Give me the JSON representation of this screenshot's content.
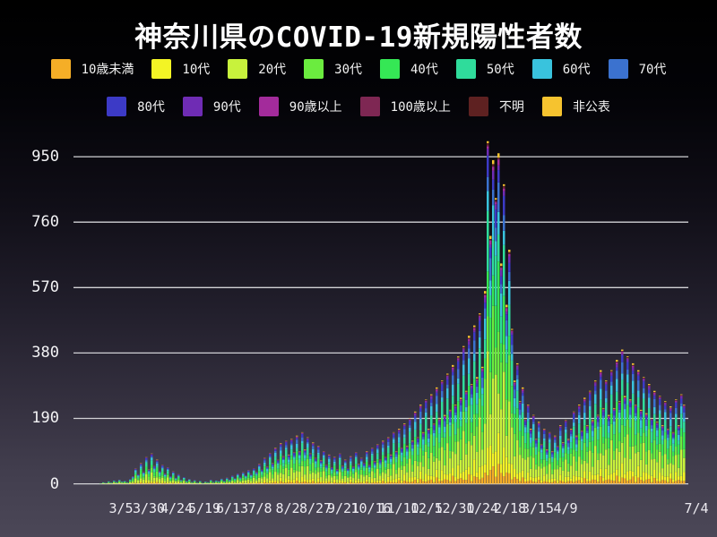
{
  "title": "神奈川県のCOVID-19新規陽性者数",
  "colors": {
    "background_top": "#000000",
    "background_bottom": "#4b4757",
    "gridline": "#d2d2d6",
    "title_text": "#ffffff",
    "axis_text": "#eceaf0"
  },
  "chart_data": {
    "type": "stacked_bar",
    "title": "神奈川県のCOVID-19新規陽性者数",
    "legend_position": "top",
    "grid": true,
    "y_axis": {
      "ticks": [
        0,
        190,
        380,
        570,
        760,
        950
      ],
      "max_visible": 1000
    },
    "x_axis": {
      "tick_labels": [
        "3/5",
        "3/30",
        "4/24",
        "5/19",
        "6/13",
        "7/8",
        "8/2",
        "8/27",
        "9/21",
        "10/16",
        "11/10",
        "12/5",
        "12/30",
        "1/24",
        "2/18",
        "3/15",
        "4/9",
        "7/4"
      ],
      "start_label": "3/5",
      "end_label": "7/4"
    },
    "age_groups": [
      {
        "label": "10歳未満",
        "color": "#f5ae27",
        "share": 0.045
      },
      {
        "label": "10代",
        "color": "#f3f425",
        "share": 0.075
      },
      {
        "label": "20代",
        "color": "#c8f23c",
        "share": 0.21
      },
      {
        "label": "30代",
        "color": "#6bec3f",
        "share": 0.165
      },
      {
        "label": "40代",
        "color": "#35e755",
        "share": 0.15
      },
      {
        "label": "50代",
        "color": "#2fdc9b",
        "share": 0.125
      },
      {
        "label": "60代",
        "color": "#39c3dd",
        "share": 0.075
      },
      {
        "label": "70代",
        "color": "#3b72cf",
        "share": 0.06
      },
      {
        "label": "80代",
        "color": "#3c3ac6",
        "share": 0.045
      },
      {
        "label": "90代",
        "color": "#6f2cb4",
        "share": 0.02
      },
      {
        "label": "90歳以上",
        "color": "#a32b9b",
        "share": 0.012
      },
      {
        "label": "100歳以上",
        "color": "#7e2753",
        "share": 0.003
      },
      {
        "label": "不明",
        "color": "#5e2121",
        "share": 0.005
      },
      {
        "label": "非公表",
        "color": "#f6c32f",
        "share": 0.01
      }
    ],
    "peak_daily_total": 995,
    "daily_totals_sampled": {
      "sample_interval_days": 2.24,
      "values": [
        2,
        5,
        3,
        8,
        4,
        10,
        6,
        12,
        7,
        9,
        5,
        14,
        22,
        45,
        28,
        60,
        35,
        78,
        42,
        88,
        52,
        70,
        38,
        55,
        30,
        48,
        22,
        36,
        18,
        28,
        12,
        20,
        9,
        14,
        6,
        11,
        4,
        9,
        3,
        7,
        5,
        12,
        6,
        10,
        8,
        15,
        9,
        18,
        12,
        24,
        16,
        30,
        20,
        34,
        25,
        40,
        28,
        45,
        35,
        58,
        42,
        75,
        50,
        90,
        60,
        105,
        70,
        118,
        80,
        125,
        85,
        130,
        92,
        140,
        95,
        150,
        100,
        135,
        88,
        120,
        75,
        110,
        68,
        95,
        55,
        85,
        48,
        78,
        42,
        88,
        52,
        70,
        45,
        80,
        50,
        92,
        58,
        75,
        60,
        95,
        55,
        105,
        65,
        115,
        70,
        125,
        78,
        135,
        85,
        150,
        95,
        160,
        105,
        175,
        110,
        190,
        125,
        210,
        135,
        230,
        150,
        245,
        160,
        260,
        175,
        280,
        190,
        300,
        200,
        320,
        215,
        345,
        230,
        370,
        250,
        400,
        270,
        430,
        290,
        460,
        310,
        495,
        340,
        560,
        995,
        720,
        940,
        830,
        960,
        640,
        870,
        520,
        680,
        450,
        300,
        350,
        240,
        280,
        190,
        230,
        160,
        200,
        130,
        180,
        115,
        160,
        100,
        150,
        95,
        140,
        110,
        170,
        120,
        185,
        130,
        160,
        210,
        140,
        230,
        155,
        250,
        170,
        270,
        185,
        300,
        200,
        330,
        220,
        300,
        200,
        330,
        220,
        360,
        240,
        390,
        255,
        370,
        245,
        350,
        230,
        330,
        215,
        310,
        205,
        290,
        190,
        270,
        180,
        255,
        170,
        240,
        160,
        225,
        150,
        245,
        170,
        260,
        230
      ]
    }
  }
}
